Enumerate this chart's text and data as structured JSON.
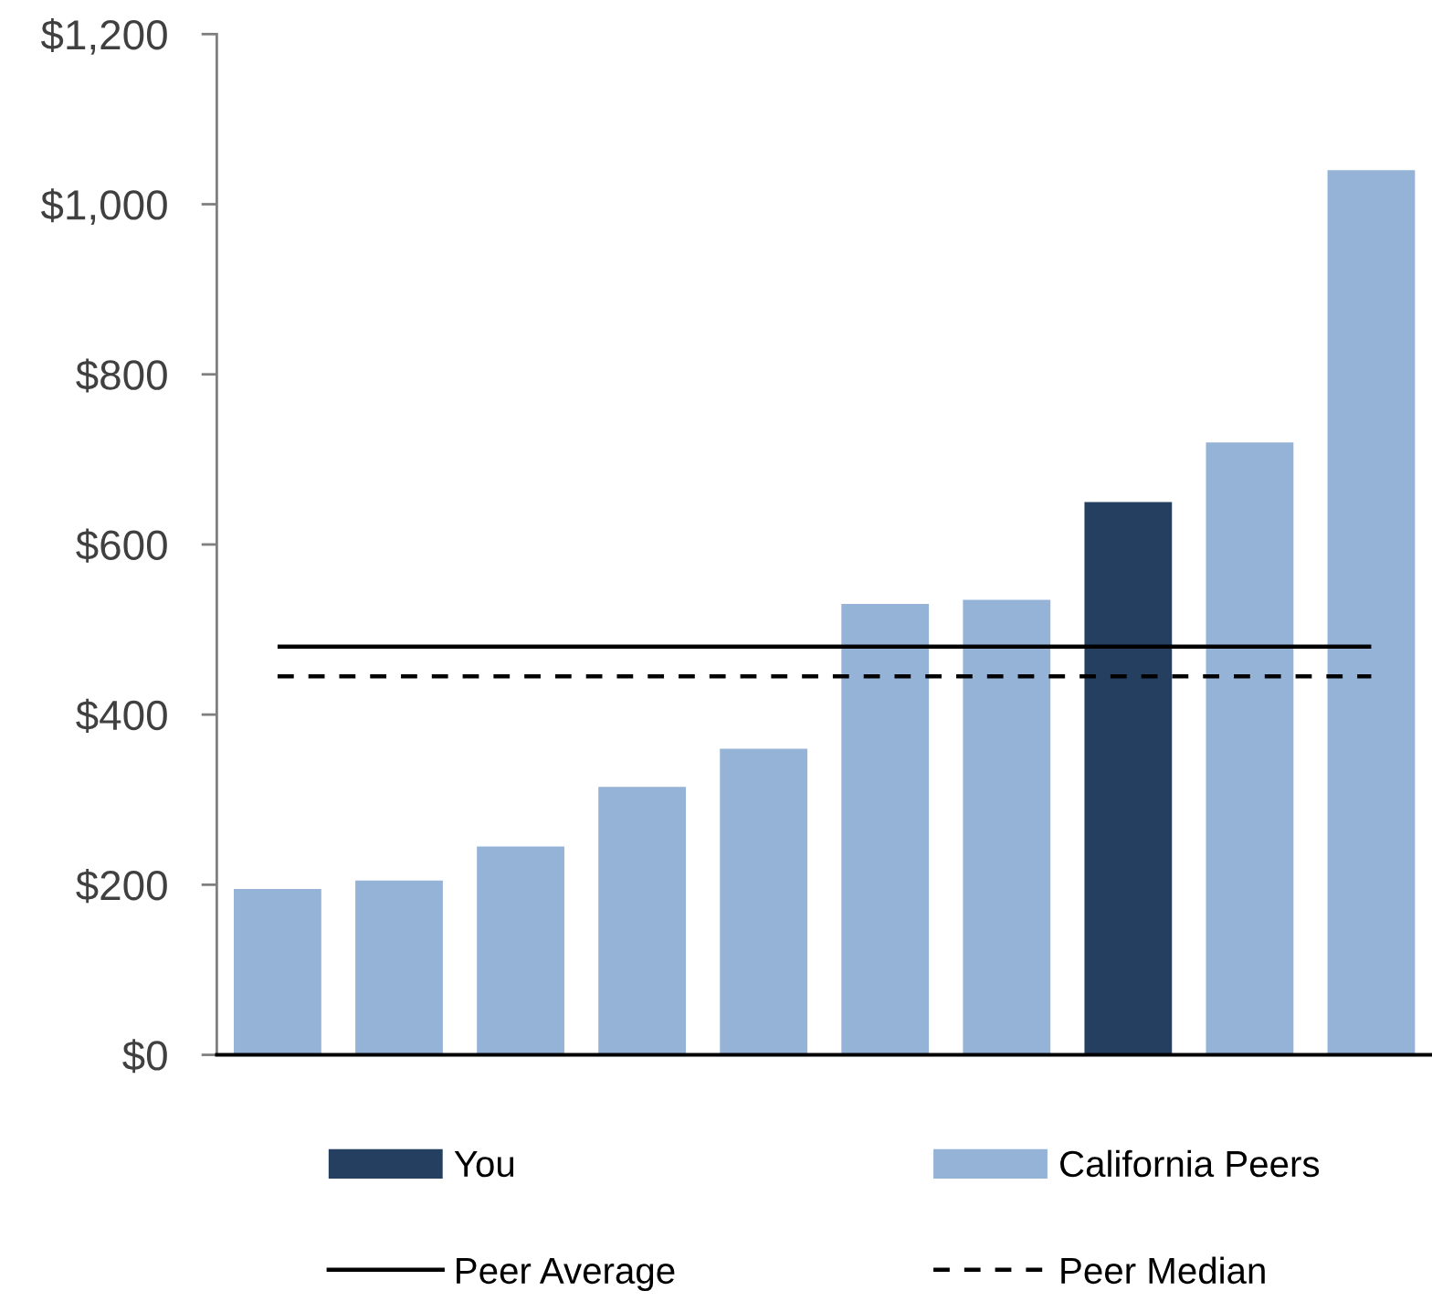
{
  "chart_data": {
    "type": "bar",
    "categories": [
      null,
      null,
      null,
      null,
      null,
      null,
      null,
      null,
      null,
      null
    ],
    "series": [
      {
        "name": "You",
        "color": "#243f60",
        "values": [
          null,
          null,
          null,
          null,
          null,
          null,
          null,
          650,
          null,
          null
        ]
      },
      {
        "name": "California Peers",
        "color": "#95b3d7",
        "values": [
          195,
          205,
          245,
          315,
          360,
          530,
          535,
          null,
          720,
          1040
        ]
      }
    ],
    "stacked": true,
    "ylim": [
      0,
      1200
    ],
    "yticks": [
      {
        "value": 0,
        "label": "$0"
      },
      {
        "value": 200,
        "label": "$200"
      },
      {
        "value": 400,
        "label": "$400"
      },
      {
        "value": 600,
        "label": "$600"
      },
      {
        "value": 800,
        "label": "$800"
      },
      {
        "value": 1000,
        "label": "$1,000"
      },
      {
        "value": 1200,
        "label": "$1,200"
      }
    ],
    "ref_lines": [
      {
        "axis": "y",
        "value": 480,
        "label": "Peer Average",
        "color": "#000000",
        "line_style": "solid"
      },
      {
        "axis": "y",
        "value": 445,
        "label": "Peer Median",
        "color": "#000000",
        "line_style": "dashed"
      }
    ],
    "legend": "bottom",
    "grid": false
  }
}
